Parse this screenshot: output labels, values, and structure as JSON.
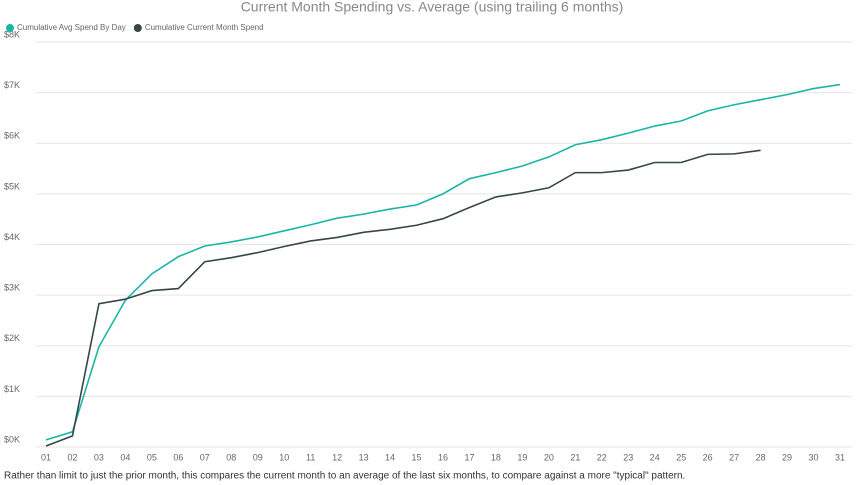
{
  "chart_data": {
    "type": "line",
    "title": "Current Month Spending vs. Average (using trailing 6 months)",
    "note": "Rather than limit to just the prior month, this compares the current month to an average of the last six months, to compare against a more \"typical\" pattern.",
    "categories": [
      "01",
      "02",
      "03",
      "04",
      "05",
      "06",
      "07",
      "08",
      "09",
      "10",
      "11",
      "12",
      "13",
      "14",
      "15",
      "16",
      "17",
      "18",
      "19",
      "20",
      "21",
      "22",
      "23",
      "24",
      "25",
      "26",
      "27",
      "28",
      "29",
      "30",
      "31"
    ],
    "series": [
      {
        "name": "Cumulative Avg Spend By Day",
        "color": "#1ab5a8",
        "values": [
          140,
          300,
          1980,
          2900,
          3420,
          3760,
          3970,
          4050,
          4150,
          4270,
          4390,
          4520,
          4600,
          4700,
          4780,
          5000,
          5300,
          5420,
          5550,
          5730,
          5970,
          6070,
          6200,
          6340,
          6440,
          6640,
          6760,
          6860,
          6960,
          7080,
          7160
        ]
      },
      {
        "name": "Cumulative Current Month Spend",
        "color": "#374649",
        "values": [
          20,
          220,
          2830,
          2920,
          3090,
          3130,
          3660,
          3740,
          3840,
          3960,
          4070,
          4140,
          4240,
          4300,
          4380,
          4510,
          4730,
          4940,
          5020,
          5120,
          5420,
          5420,
          5470,
          5620,
          5620,
          5780,
          5790,
          5860,
          null,
          null,
          null
        ]
      }
    ],
    "ylim": [
      0,
      8000
    ],
    "yticks": [
      {
        "value": 0,
        "label": "$0K"
      },
      {
        "value": 1000,
        "label": "$1K"
      },
      {
        "value": 2000,
        "label": "$2K"
      },
      {
        "value": 3000,
        "label": "$3K"
      },
      {
        "value": 4000,
        "label": "$4K"
      },
      {
        "value": 5000,
        "label": "$5K"
      },
      {
        "value": 6000,
        "label": "$6K"
      },
      {
        "value": 7000,
        "label": "$7K"
      },
      {
        "value": 8000,
        "label": "$8K"
      }
    ],
    "grid": true,
    "legend": "top-left"
  }
}
